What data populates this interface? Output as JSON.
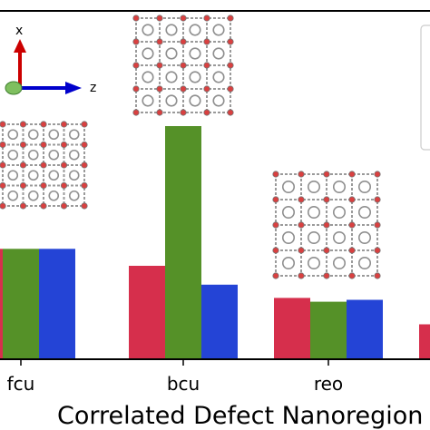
{
  "chart_data": {
    "type": "bar",
    "categories": [
      "fcu",
      "bcu",
      "reo",
      ""
    ],
    "series": [
      {
        "color": "#d62f4c",
        "values": [
          0.58,
          0.49,
          0.32,
          0.18
        ]
      },
      {
        "color": "#559128",
        "values": [
          0.58,
          1.23,
          0.3,
          null
        ]
      },
      {
        "color": "#2444d6",
        "values": [
          0.58,
          0.39,
          0.31,
          null
        ]
      }
    ],
    "xlabel": "Correlated Defect Nanoregion",
    "ylim": [
      0,
      1.23
    ],
    "grid": false,
    "legend": "top-right",
    "insets": [
      "fcu-structure",
      "bcu-structure",
      "reo-structure"
    ],
    "orientation_axes": {
      "up_label": "x",
      "right_label": "z",
      "up_color": "#cc0000",
      "right_color": "#0000cc"
    }
  }
}
